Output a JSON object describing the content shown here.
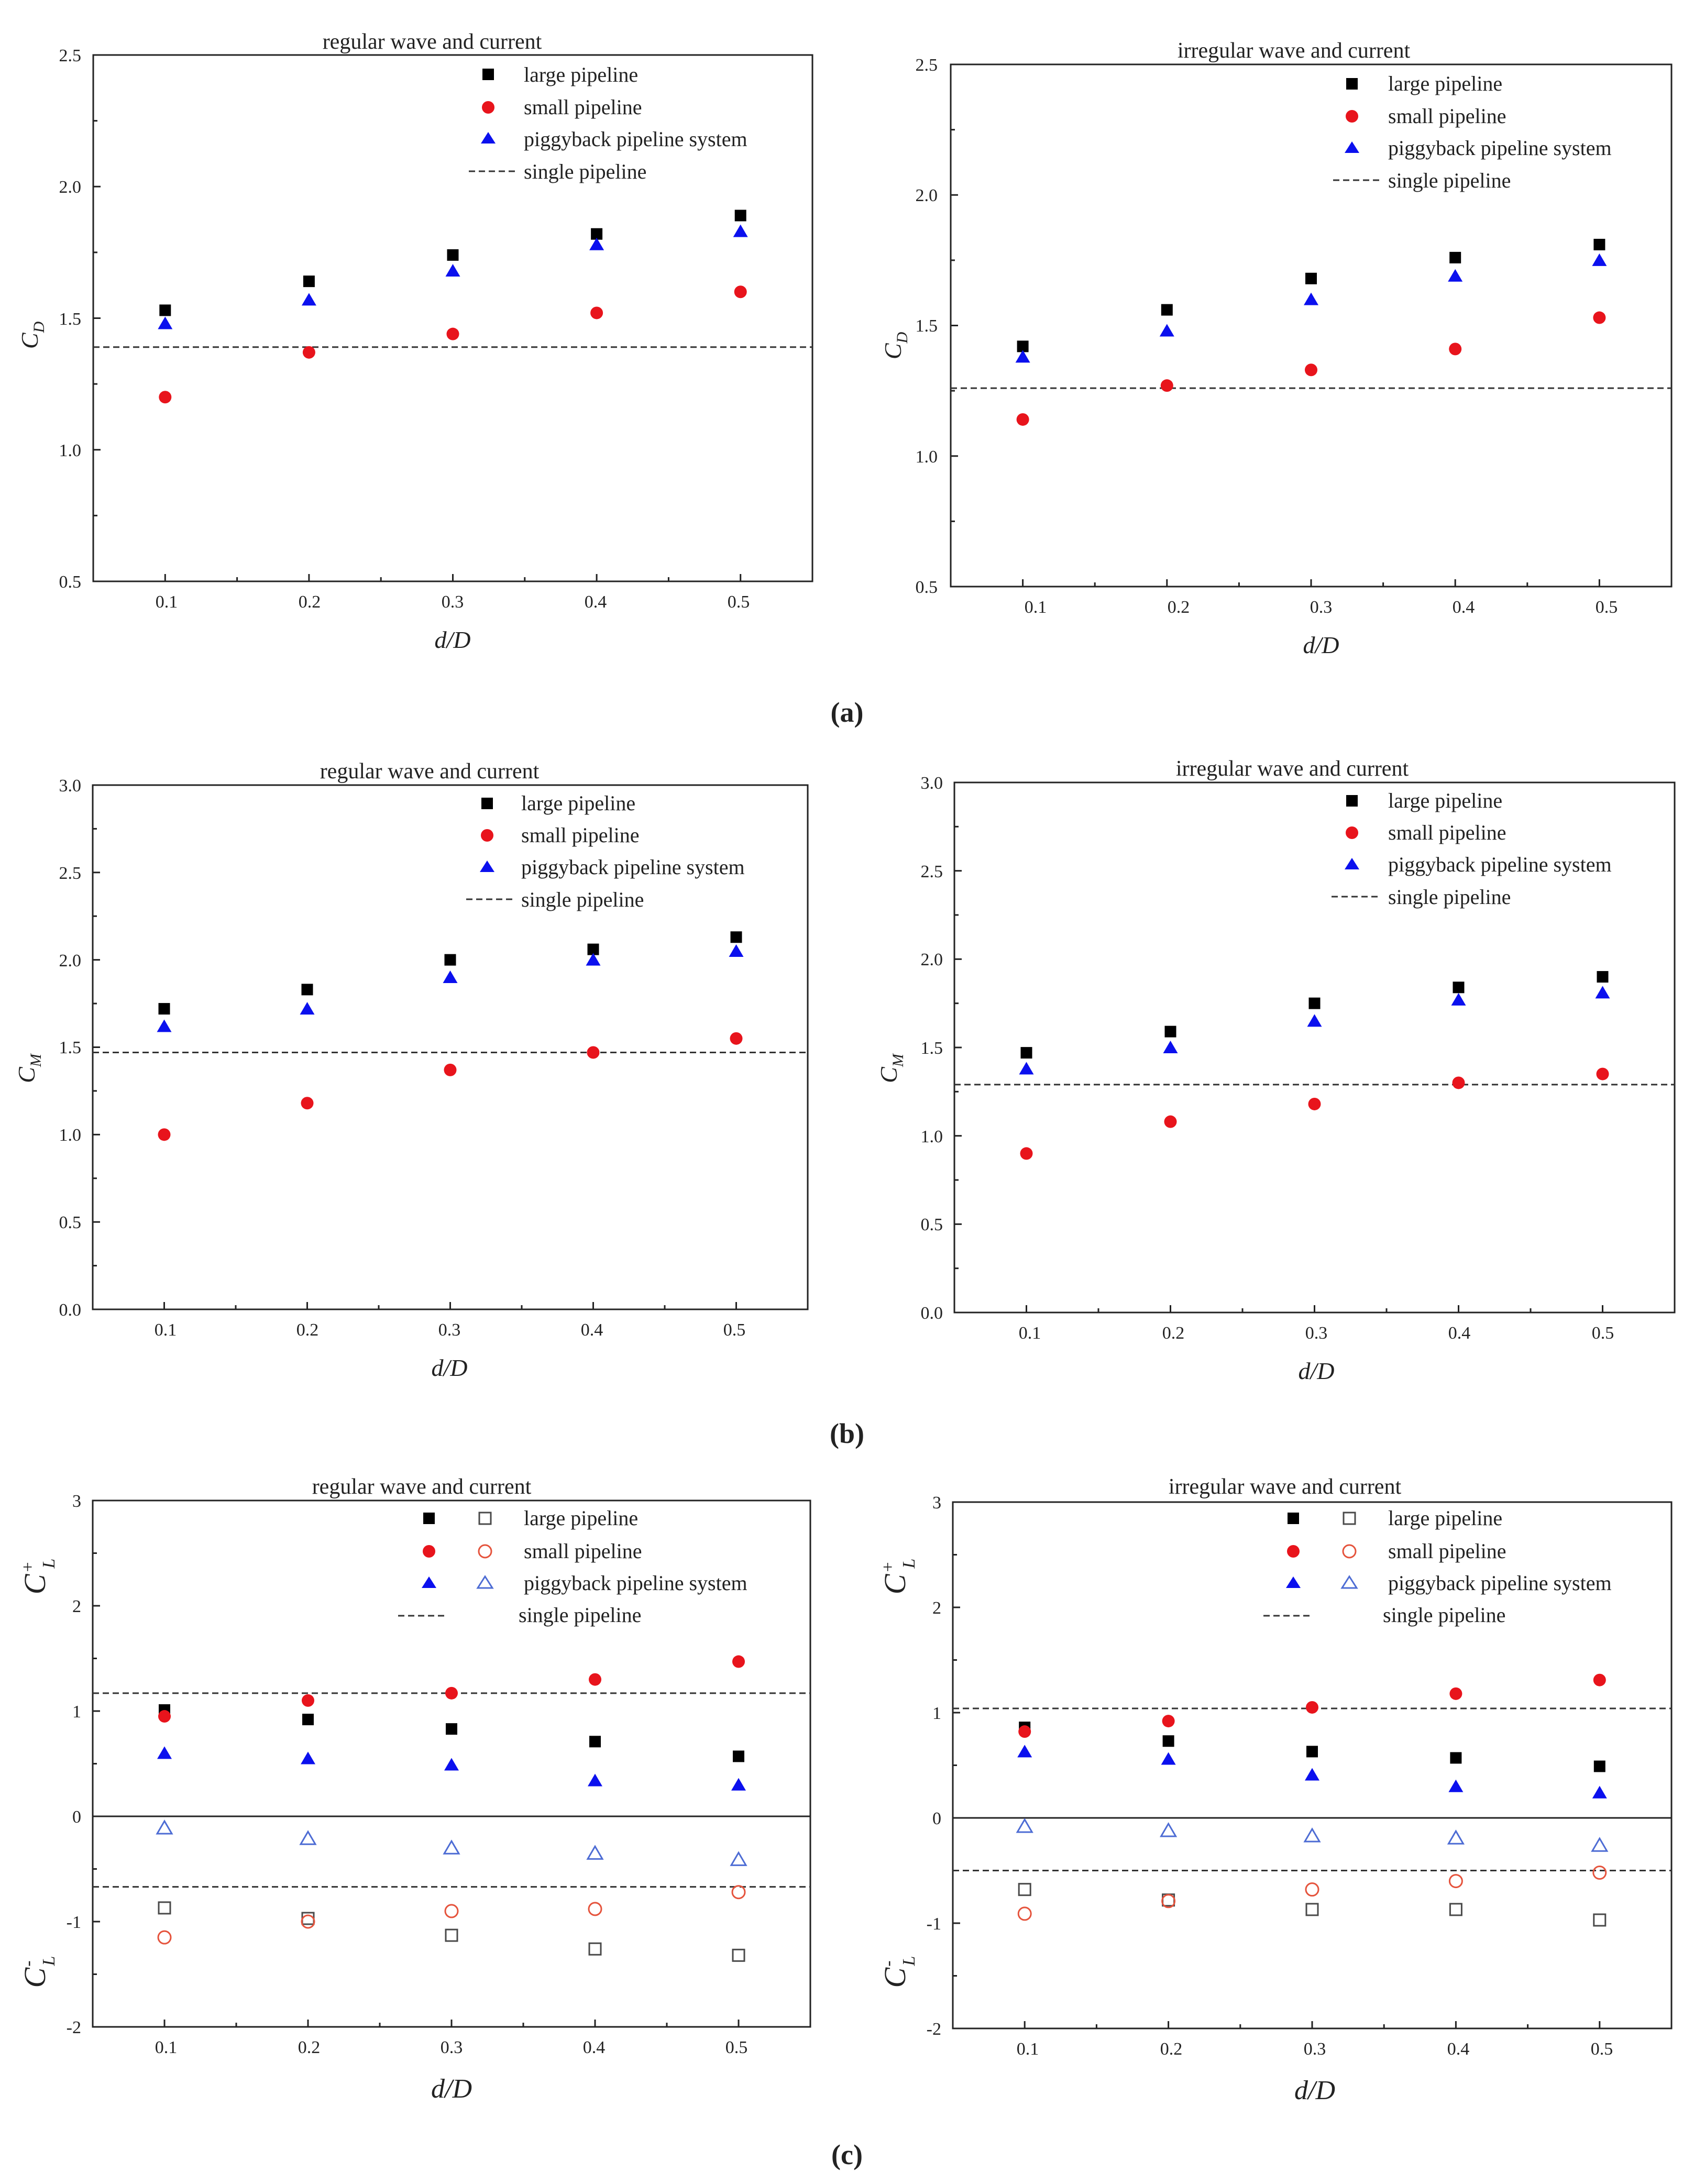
{
  "figure": {
    "panel_labels": [
      "(a)",
      "(b)",
      "(c)"
    ],
    "x_title_main": "d/D"
  },
  "colors": {
    "large": "#000000",
    "small": "#e8141c",
    "piggy": "#0b10ee",
    "large_open": "#4a4a4a",
    "small_open": "#e5533c",
    "piggy_open": "#4d6cd4",
    "axis": "#222222"
  },
  "chart_data": [
    {
      "id": "a-regular",
      "type": "scatter",
      "panel": "a",
      "title": "regular wave and current",
      "xlabel": "d/D",
      "ylabel": "C",
      "ylabel_sub": "D",
      "x": [
        0.1,
        0.2,
        0.3,
        0.4,
        0.5
      ],
      "xticks": [
        "0.1",
        "0.2",
        "0.3",
        "0.4",
        "0.5"
      ],
      "ylim": [
        0.5,
        2.5
      ],
      "yticks": [
        "0.5",
        "1.0",
        "1.5",
        "2.0",
        "2.5"
      ],
      "legend": [
        "large pipeline",
        "small pipeline",
        "piggyback pipeline system",
        "single pipeline"
      ],
      "series": [
        {
          "name": "large pipeline",
          "marker": "square",
          "values": [
            1.53,
            1.64,
            1.74,
            1.82,
            1.89
          ]
        },
        {
          "name": "small pipeline",
          "marker": "circle",
          "values": [
            1.2,
            1.37,
            1.44,
            1.52,
            1.6
          ]
        },
        {
          "name": "piggyback pipeline system",
          "marker": "triangle",
          "values": [
            1.48,
            1.57,
            1.68,
            1.78,
            1.83
          ]
        }
      ],
      "reference_lines": [
        {
          "name": "single pipeline",
          "value": 1.39
        }
      ]
    },
    {
      "id": "a-irregular",
      "type": "scatter",
      "panel": "a",
      "title": "irregular wave and current",
      "xlabel": "d/D",
      "ylabel": "C",
      "ylabel_sub": "D",
      "x": [
        0.1,
        0.2,
        0.3,
        0.4,
        0.5
      ],
      "xticks": [
        "0.1",
        "0.2",
        "0.3",
        "0.4",
        "0.5"
      ],
      "ylim": [
        0.5,
        2.5
      ],
      "yticks": [
        "0.5",
        "1.0",
        "1.5",
        "2.0",
        "2.5"
      ],
      "legend": [
        "large pipeline",
        "small pipeline",
        "piggyback pipeline system",
        "single pipeline"
      ],
      "series": [
        {
          "name": "large pipeline",
          "marker": "square",
          "values": [
            1.42,
            1.56,
            1.68,
            1.76,
            1.81
          ]
        },
        {
          "name": "small pipeline",
          "marker": "circle",
          "values": [
            1.14,
            1.27,
            1.33,
            1.41,
            1.53
          ]
        },
        {
          "name": "piggyback pipeline system",
          "marker": "triangle",
          "values": [
            1.38,
            1.48,
            1.6,
            1.69,
            1.75
          ]
        }
      ],
      "reference_lines": [
        {
          "name": "single pipeline",
          "value": 1.26
        }
      ]
    },
    {
      "id": "b-regular",
      "type": "scatter",
      "panel": "b",
      "title": "regular wave and current",
      "xlabel": "d/D",
      "ylabel": "C",
      "ylabel_sub": "M",
      "x": [
        0.1,
        0.2,
        0.3,
        0.4,
        0.5
      ],
      "xticks": [
        "0.1",
        "0.2",
        "0.3",
        "0.4",
        "0.5"
      ],
      "ylim": [
        0.0,
        3.0
      ],
      "yticks": [
        "0.0",
        "0.5",
        "1.0",
        "1.5",
        "2.0",
        "2.5",
        "3.0"
      ],
      "legend": [
        "large pipeline",
        "small pipeline",
        "piggyback pipeline system",
        "single pipeline"
      ],
      "series": [
        {
          "name": "large pipeline",
          "marker": "square",
          "values": [
            1.72,
            1.83,
            2.0,
            2.06,
            2.13
          ]
        },
        {
          "name": "small pipeline",
          "marker": "circle",
          "values": [
            1.0,
            1.18,
            1.37,
            1.47,
            1.55
          ]
        },
        {
          "name": "piggyback pipeline system",
          "marker": "triangle",
          "values": [
            1.62,
            1.72,
            1.9,
            2.0,
            2.05
          ]
        }
      ],
      "reference_lines": [
        {
          "name": "single pipeline",
          "value": 1.47
        }
      ]
    },
    {
      "id": "b-irregular",
      "type": "scatter",
      "panel": "b",
      "title": "irregular wave and current",
      "xlabel": "d/D",
      "ylabel": "C",
      "ylabel_sub": "M",
      "x": [
        0.1,
        0.2,
        0.3,
        0.4,
        0.5
      ],
      "xticks": [
        "0.1",
        "0.2",
        "0.3",
        "0.4",
        "0.5"
      ],
      "ylim": [
        0.0,
        3.0
      ],
      "yticks": [
        "0.0",
        "0.5",
        "1.0",
        "1.5",
        "2.0",
        "2.5",
        "3.0"
      ],
      "legend": [
        "large pipeline",
        "small pipeline",
        "piggyback pipeline system",
        "single pipeline"
      ],
      "series": [
        {
          "name": "large pipeline",
          "marker": "square",
          "values": [
            1.47,
            1.59,
            1.75,
            1.84,
            1.9
          ]
        },
        {
          "name": "small pipeline",
          "marker": "circle",
          "values": [
            0.9,
            1.08,
            1.18,
            1.3,
            1.35
          ]
        },
        {
          "name": "piggyback pipeline system",
          "marker": "triangle",
          "values": [
            1.38,
            1.5,
            1.65,
            1.77,
            1.81
          ]
        }
      ],
      "reference_lines": [
        {
          "name": "single pipeline",
          "value": 1.29
        }
      ]
    },
    {
      "id": "c-regular",
      "type": "scatter",
      "panel": "c",
      "title": "regular wave and current",
      "xlabel": "d/D",
      "ylabel_top": "C",
      "ylabel_top_sup": "+",
      "ylabel_bottom": "C",
      "ylabel_bottom_sup": "-",
      "ylabel_sub": "L",
      "x": [
        0.1,
        0.2,
        0.3,
        0.4,
        0.5
      ],
      "xticks": [
        "0.1",
        "0.2",
        "0.3",
        "0.4",
        "0.5"
      ],
      "ylim": [
        -2,
        3
      ],
      "yticks": [
        "-2",
        "-1",
        "0",
        "1",
        "2",
        "3"
      ],
      "zero_line": true,
      "legend": [
        "large pipeline",
        "small pipeline",
        "piggyback pipeline system",
        "single pipeline"
      ],
      "series": [
        {
          "name": "large pipeline C_L+",
          "marker": "square",
          "values": [
            1.01,
            0.92,
            0.83,
            0.71,
            0.57
          ]
        },
        {
          "name": "small pipeline C_L+",
          "marker": "circle",
          "values": [
            0.95,
            1.1,
            1.17,
            1.3,
            1.47
          ]
        },
        {
          "name": "piggyback pipeline system C_L+",
          "marker": "triangle",
          "values": [
            0.6,
            0.55,
            0.49,
            0.34,
            0.3
          ]
        },
        {
          "name": "large pipeline C_L-",
          "marker": "square-open",
          "values": [
            -0.87,
            -0.97,
            -1.13,
            -1.26,
            -1.32
          ]
        },
        {
          "name": "small pipeline C_L-",
          "marker": "circle-open",
          "values": [
            -1.15,
            -1.0,
            -0.9,
            -0.88,
            -0.72
          ]
        },
        {
          "name": "piggyback pipeline system C_L-",
          "marker": "triangle-open",
          "values": [
            -0.11,
            -0.21,
            -0.3,
            -0.35,
            -0.41
          ]
        }
      ],
      "reference_lines": [
        {
          "name": "single pipeline",
          "value": 1.17
        },
        {
          "name": "single pipeline",
          "value": -0.67
        }
      ]
    },
    {
      "id": "c-irregular",
      "type": "scatter",
      "panel": "c",
      "title": "irregular wave and current",
      "xlabel": "d/D",
      "ylabel_top": "C",
      "ylabel_top_sup": "+",
      "ylabel_bottom": "C",
      "ylabel_bottom_sup": "-",
      "ylabel_sub": "L",
      "x": [
        0.1,
        0.2,
        0.3,
        0.4,
        0.5
      ],
      "xticks": [
        "0.1",
        "0.2",
        "0.3",
        "0.4",
        "0.5"
      ],
      "ylim": [
        -2,
        3
      ],
      "yticks": [
        "-2",
        "-1",
        "0",
        "1",
        "2",
        "3"
      ],
      "zero_line": true,
      "legend": [
        "large pipeline",
        "small pipeline",
        "piggyback pipeline system",
        "single pipeline"
      ],
      "series": [
        {
          "name": "large pipeline C_L+",
          "marker": "square",
          "values": [
            0.86,
            0.73,
            0.63,
            0.57,
            0.49
          ]
        },
        {
          "name": "small pipeline C_L+",
          "marker": "circle",
          "values": [
            0.82,
            0.92,
            1.05,
            1.18,
            1.31
          ]
        },
        {
          "name": "piggyback pipeline system C_L+",
          "marker": "triangle",
          "values": [
            0.63,
            0.56,
            0.41,
            0.3,
            0.24
          ]
        },
        {
          "name": "large pipeline C_L-",
          "marker": "square-open",
          "values": [
            -0.68,
            -0.78,
            -0.87,
            -0.87,
            -0.97
          ]
        },
        {
          "name": "small pipeline C_L-",
          "marker": "circle-open",
          "values": [
            -0.91,
            -0.79,
            -0.68,
            -0.6,
            -0.52
          ]
        },
        {
          "name": "piggyback pipeline system C_L-",
          "marker": "triangle-open",
          "values": [
            -0.08,
            -0.12,
            -0.17,
            -0.19,
            -0.26
          ]
        }
      ],
      "reference_lines": [
        {
          "name": "single pipeline",
          "value": 1.04
        },
        {
          "name": "single pipeline",
          "value": -0.5
        }
      ]
    }
  ]
}
